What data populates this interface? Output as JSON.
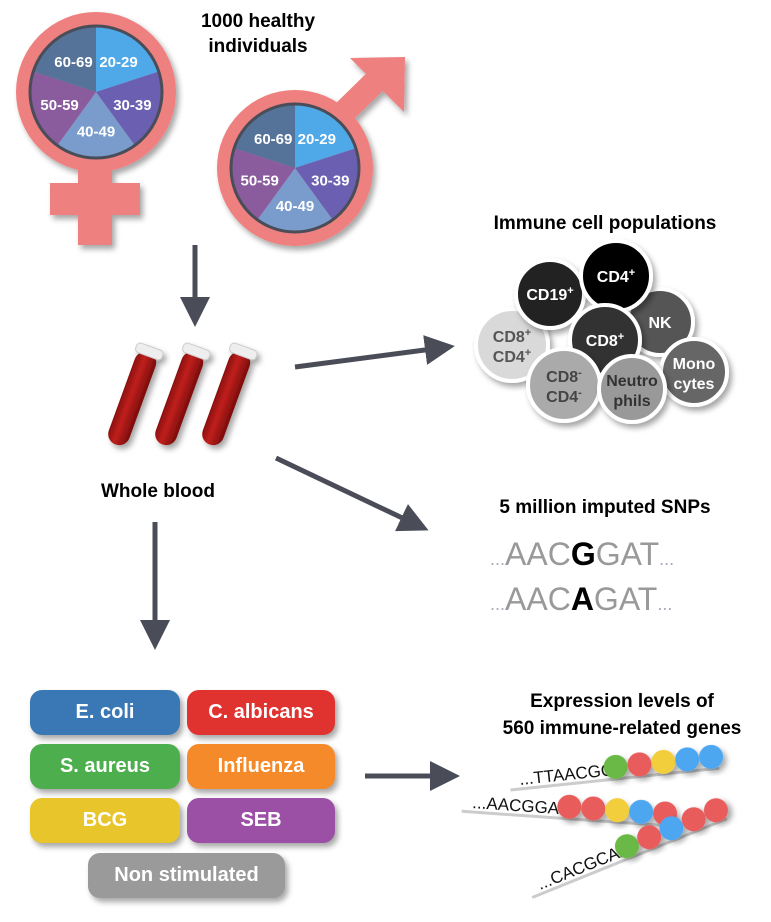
{
  "title": [
    "1000 healthy",
    "individuals"
  ],
  "age_groups": [
    {
      "label": "20-29",
      "color": "#4fa8e8"
    },
    {
      "label": "30-39",
      "color": "#6a5fb0"
    },
    {
      "label": "40-49",
      "color": "#7a9ccd"
    },
    {
      "label": "50-59",
      "color": "#8a5c9e"
    },
    {
      "label": "60-69",
      "color": "#557399"
    }
  ],
  "symbol_color": "#ee8080",
  "whole_blood": "Whole blood",
  "immune_title": "Immune cell populations",
  "cells": [
    {
      "line1": "CD8",
      "sup1": "+",
      "line2": "CD4",
      "sup2": "+",
      "fill": "#d9d9d9",
      "text": "#555"
    },
    {
      "line1": "CD19",
      "sup1": "+",
      "fill": "#222",
      "text": "#fff"
    },
    {
      "line1": "NK",
      "fill": "#555",
      "text": "#fff"
    },
    {
      "line1": "CD4",
      "sup1": "+",
      "fill": "#000",
      "text": "#fff"
    },
    {
      "line1": "CD8",
      "sup1": "+",
      "fill": "#333",
      "text": "#fff"
    },
    {
      "line1": "CD8",
      "sup1": "-",
      "line2": "CD4",
      "sup2": "-",
      "fill": "#aaa",
      "text": "#444"
    },
    {
      "line1": "Mono",
      "line2": "cytes",
      "fill": "#666",
      "text": "#fff"
    },
    {
      "line1": "Neutro",
      "line2": "phils",
      "fill": "#999",
      "text": "#333"
    }
  ],
  "snp_title": "5 million imputed SNPs",
  "snps": [
    {
      "prefix": "...",
      "before": "AAC",
      "allele": "G",
      "after": "GAT",
      "suffix": "..."
    },
    {
      "prefix": "...",
      "before": "AAC",
      "allele": "A",
      "after": "GAT",
      "suffix": "..."
    }
  ],
  "stimuli": [
    {
      "label": "E. coli",
      "color": "#3a78b5"
    },
    {
      "label": "C. albicans",
      "color": "#e0332f"
    },
    {
      "label": "S. aureus",
      "color": "#4cae4c"
    },
    {
      "label": "Influenza",
      "color": "#f58a2a"
    },
    {
      "label": "BCG",
      "color": "#e9c52c"
    },
    {
      "label": "SEB",
      "color": "#9b4fa5"
    },
    {
      "label": "Non stimulated",
      "color": "#9a9a9a"
    }
  ],
  "expression_title": [
    "Expression levels of",
    "560 immune-related genes"
  ],
  "genes": [
    {
      "seq": "...TTAACGG",
      "beads": [
        "#6ab845",
        "#e85c5c",
        "#f2ce3d",
        "#4ea6f0",
        "#4ea6f0"
      ]
    },
    {
      "seq": "...AACGGAT",
      "beads": [
        "#e85c5c",
        "#e85c5c",
        "#f2ce3d",
        "#4ea6f0",
        "#e85c5c"
      ]
    },
    {
      "seq": "...CACGCAA",
      "beads": [
        "#6ab845",
        "#e85c5c",
        "#4ea6f0",
        "#e85c5c",
        "#e85c5c"
      ]
    }
  ]
}
